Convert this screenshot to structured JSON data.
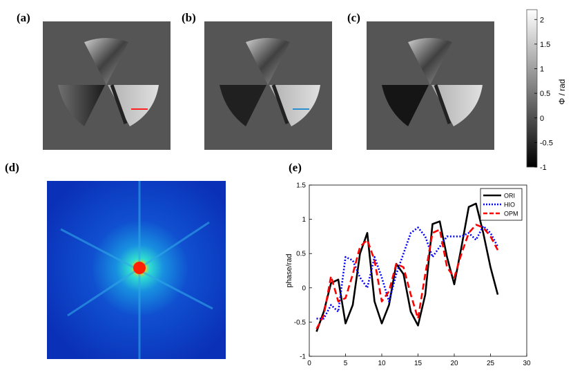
{
  "panels": {
    "a": "(a)",
    "b": "(b)",
    "c": "(c)",
    "d": "(d)",
    "e": "(e)"
  },
  "colorbar": {
    "label": "Φ / rad",
    "ticks": [
      "2",
      "1.5",
      "1",
      "0.5",
      "0",
      "-0.5",
      "-1"
    ],
    "range": [
      -1,
      2.2
    ]
  },
  "chart_data": {
    "type": "line",
    "xlabel": "",
    "ylabel": "phase/rad",
    "xlim": [
      0,
      30
    ],
    "ylim": [
      -1,
      1.5
    ],
    "xticks": [
      0,
      5,
      10,
      15,
      20,
      25,
      30
    ],
    "yticks": [
      -1,
      -0.5,
      0,
      0.5,
      1,
      1.5
    ],
    "legend": "top-right",
    "series": [
      {
        "name": "ORI",
        "color": "#000000",
        "style": "solid",
        "x": [
          1,
          2,
          3,
          4,
          5,
          6,
          7,
          8,
          9,
          10,
          11,
          12,
          13,
          14,
          15,
          16,
          17,
          18,
          19,
          20,
          21,
          22,
          23,
          24,
          25,
          26
        ],
        "values": [
          -0.64,
          -0.35,
          0.07,
          0.12,
          -0.52,
          -0.25,
          0.5,
          0.8,
          -0.2,
          -0.52,
          -0.25,
          0.35,
          0.2,
          -0.35,
          -0.55,
          -0.1,
          0.93,
          0.97,
          0.45,
          0.05,
          0.6,
          1.18,
          1.23,
          0.8,
          0.3,
          -0.1
        ]
      },
      {
        "name": "HIO",
        "color": "#0000ff",
        "style": "dotted",
        "x": [
          1,
          2,
          3,
          4,
          5,
          6,
          7,
          8,
          9,
          10,
          11,
          12,
          13,
          14,
          15,
          16,
          17,
          18,
          19,
          20,
          21,
          22,
          23,
          24,
          25,
          26
        ],
        "values": [
          -0.45,
          -0.45,
          -0.25,
          -0.35,
          0.45,
          0.4,
          0.15,
          0.0,
          0.45,
          0.15,
          -0.2,
          0.2,
          0.5,
          0.8,
          0.88,
          0.75,
          0.45,
          0.6,
          0.75,
          0.75,
          0.75,
          0.8,
          0.7,
          0.9,
          0.8,
          0.6
        ]
      },
      {
        "name": "OPM",
        "color": "#ff0000",
        "style": "dashed",
        "x": [
          1,
          2,
          3,
          4,
          5,
          6,
          7,
          8,
          9,
          10,
          11,
          12,
          13,
          14,
          15,
          16,
          17,
          18,
          19,
          20,
          21,
          22,
          23,
          24,
          25,
          26
        ],
        "values": [
          -0.6,
          -0.4,
          0.17,
          -0.2,
          -0.15,
          0.2,
          0.6,
          0.7,
          0.4,
          -0.2,
          -0.05,
          0.35,
          0.3,
          -0.1,
          -0.45,
          0.2,
          0.8,
          0.85,
          0.3,
          0.15,
          0.5,
          0.8,
          0.92,
          0.88,
          0.75,
          0.55
        ]
      }
    ]
  }
}
